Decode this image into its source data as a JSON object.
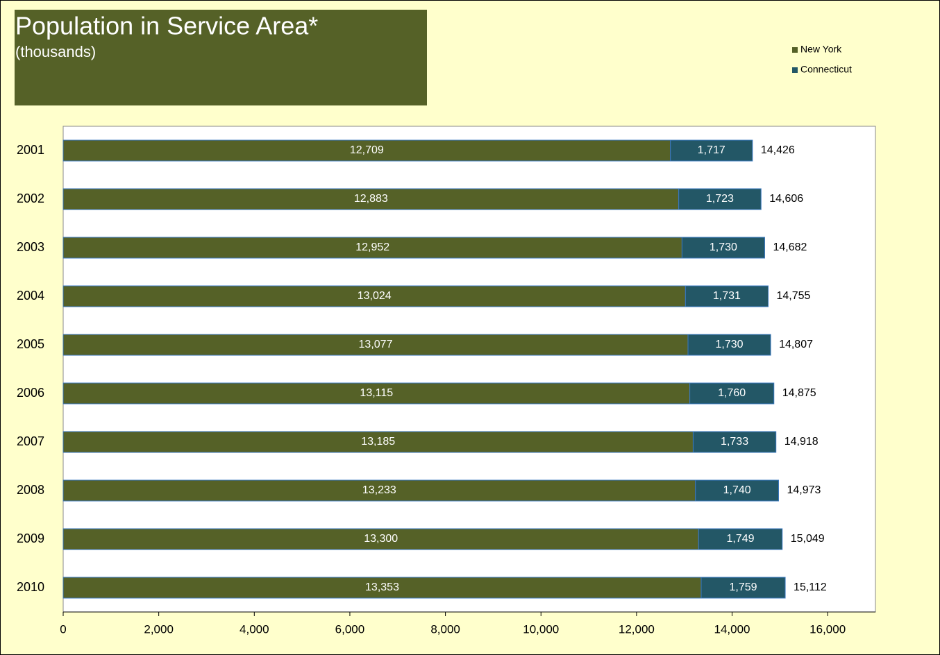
{
  "chart_data": {
    "type": "barh_stacked",
    "title": "Population in Service Area*",
    "subtitle": "(thousands)",
    "categories": [
      "2001",
      "2002",
      "2003",
      "2004",
      "2005",
      "2006",
      "2007",
      "2008",
      "2009",
      "2010"
    ],
    "series": [
      {
        "name": "New York",
        "color": "#556127",
        "values": [
          12709,
          12883,
          12952,
          13024,
          13077,
          13115,
          13185,
          13233,
          13300,
          13353
        ],
        "value_labels": [
          "12,709",
          "12,883",
          "12,952",
          "13,024",
          "13,077",
          "13,115",
          "13,185",
          "13,233",
          "13,300",
          "13,353"
        ]
      },
      {
        "name": "Connecticut",
        "color": "#235766",
        "values": [
          1717,
          1723,
          1730,
          1731,
          1730,
          1760,
          1733,
          1740,
          1749,
          1759
        ],
        "value_labels": [
          "1,717",
          "1,723",
          "1,730",
          "1,731",
          "1,730",
          "1,760",
          "1,733",
          "1,740",
          "1,749",
          "1,759"
        ]
      }
    ],
    "totals": [
      14426,
      14606,
      14682,
      14755,
      14807,
      14875,
      14918,
      14973,
      15049,
      15112
    ],
    "total_labels": [
      "14,426",
      "14,606",
      "14,682",
      "14,755",
      "14,807",
      "14,875",
      "14,918",
      "14,973",
      "15,049",
      "15,112"
    ],
    "xlim": [
      0,
      17000
    ],
    "xticks": [
      0,
      {
        "value": 2000,
        "label": "2,000"
      },
      {
        "value": 4000,
        "label": "4,000"
      },
      {
        "value": 6000,
        "label": "6,000"
      },
      {
        "value": 8000,
        "label": "8,000"
      },
      {
        "value": 10000,
        "label": "10,000"
      },
      {
        "value": 12000,
        "label": "12,000"
      },
      {
        "value": 14000,
        "label": "14,000"
      },
      {
        "value": 16000,
        "label": "16,000"
      }
    ],
    "legend": "top-right"
  }
}
